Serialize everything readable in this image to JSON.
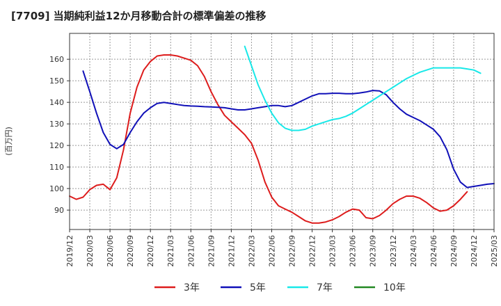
{
  "chart_data": {
    "type": "line",
    "title": "[7709]  当期純利益12か月移動合計の標準偏差の推移",
    "ylabel": "(百万円)",
    "xlabel": "",
    "ylim": [
      81,
      172
    ],
    "yticks": [
      90,
      100,
      110,
      120,
      130,
      140,
      150,
      160
    ],
    "x_range_months": [
      0,
      63
    ],
    "xticks": [
      {
        "label": "2019/12",
        "m": 0
      },
      {
        "label": "2020/03",
        "m": 3
      },
      {
        "label": "2020/06",
        "m": 6
      },
      {
        "label": "2020/09",
        "m": 9
      },
      {
        "label": "2020/12",
        "m": 12
      },
      {
        "label": "2021/03",
        "m": 15
      },
      {
        "label": "2021/06",
        "m": 18
      },
      {
        "label": "2021/09",
        "m": 21
      },
      {
        "label": "2021/12",
        "m": 24
      },
      {
        "label": "2022/03",
        "m": 27
      },
      {
        "label": "2022/06",
        "m": 30
      },
      {
        "label": "2022/09",
        "m": 33
      },
      {
        "label": "2022/12",
        "m": 36
      },
      {
        "label": "2023/03",
        "m": 39
      },
      {
        "label": "2023/06",
        "m": 42
      },
      {
        "label": "2023/09",
        "m": 45
      },
      {
        "label": "2023/12",
        "m": 48
      },
      {
        "label": "2024/03",
        "m": 51
      },
      {
        "label": "2024/06",
        "m": 54
      },
      {
        "label": "2024/09",
        "m": 57
      },
      {
        "label": "2024/12",
        "m": 60
      },
      {
        "label": "2025/03",
        "m": 63
      }
    ],
    "grid": true,
    "legend_position": "bottom",
    "series": [
      {
        "name": "3年",
        "color": "#dd1c1c",
        "start_m": 0,
        "values": [
          96.5,
          95,
          96,
          99.5,
          101.5,
          102,
          99.5,
          105,
          118,
          135,
          147,
          155,
          159,
          161.5,
          162,
          162,
          161.5,
          160.5,
          159.5,
          157,
          152,
          145,
          139,
          134,
          131,
          128,
          125,
          121,
          113,
          103,
          96,
          92,
          90.5,
          89,
          87,
          85,
          84,
          84,
          84.5,
          85.5,
          87,
          89,
          90.5,
          90,
          86.5,
          86,
          87.5,
          90,
          93,
          95,
          96.5,
          96.5,
          95.5,
          93.5,
          91,
          89.5,
          90,
          92,
          95,
          98.5
        ]
      },
      {
        "name": "5年",
        "color": "#1010b8",
        "start_m": 2,
        "values": [
          154.5,
          145,
          135,
          126,
          120.5,
          118.5,
          120.5,
          126,
          131,
          135,
          137.5,
          139.5,
          140,
          139.5,
          139,
          138.5,
          138.3,
          138.2,
          138,
          137.9,
          137.7,
          137.5,
          137,
          136.5,
          136.5,
          137,
          137.5,
          138,
          138.5,
          138.5,
          138,
          138.5,
          140,
          141.5,
          143,
          144,
          144,
          144.2,
          144.2,
          144,
          144,
          144.3,
          144.8,
          145.5,
          145.3,
          143.5,
          140,
          137,
          134.5,
          133,
          131.5,
          129.5,
          127.5,
          124,
          118,
          109,
          103,
          100.5,
          101,
          101.5,
          102,
          102.3
        ]
      },
      {
        "name": "7年",
        "color": "#18e8e8",
        "start_m": 26,
        "values": [
          166,
          157,
          148,
          141,
          135,
          130.5,
          128,
          127,
          127,
          127.5,
          129,
          130,
          131,
          132,
          132.5,
          133.5,
          135,
          137,
          139,
          141,
          143,
          145,
          147,
          149,
          151,
          152.5,
          154,
          155,
          156,
          156,
          156,
          156,
          156,
          155.5,
          155,
          153.5
        ]
      },
      {
        "name": "10年",
        "color": "#228822",
        "start_m": 0,
        "values": []
      }
    ]
  }
}
